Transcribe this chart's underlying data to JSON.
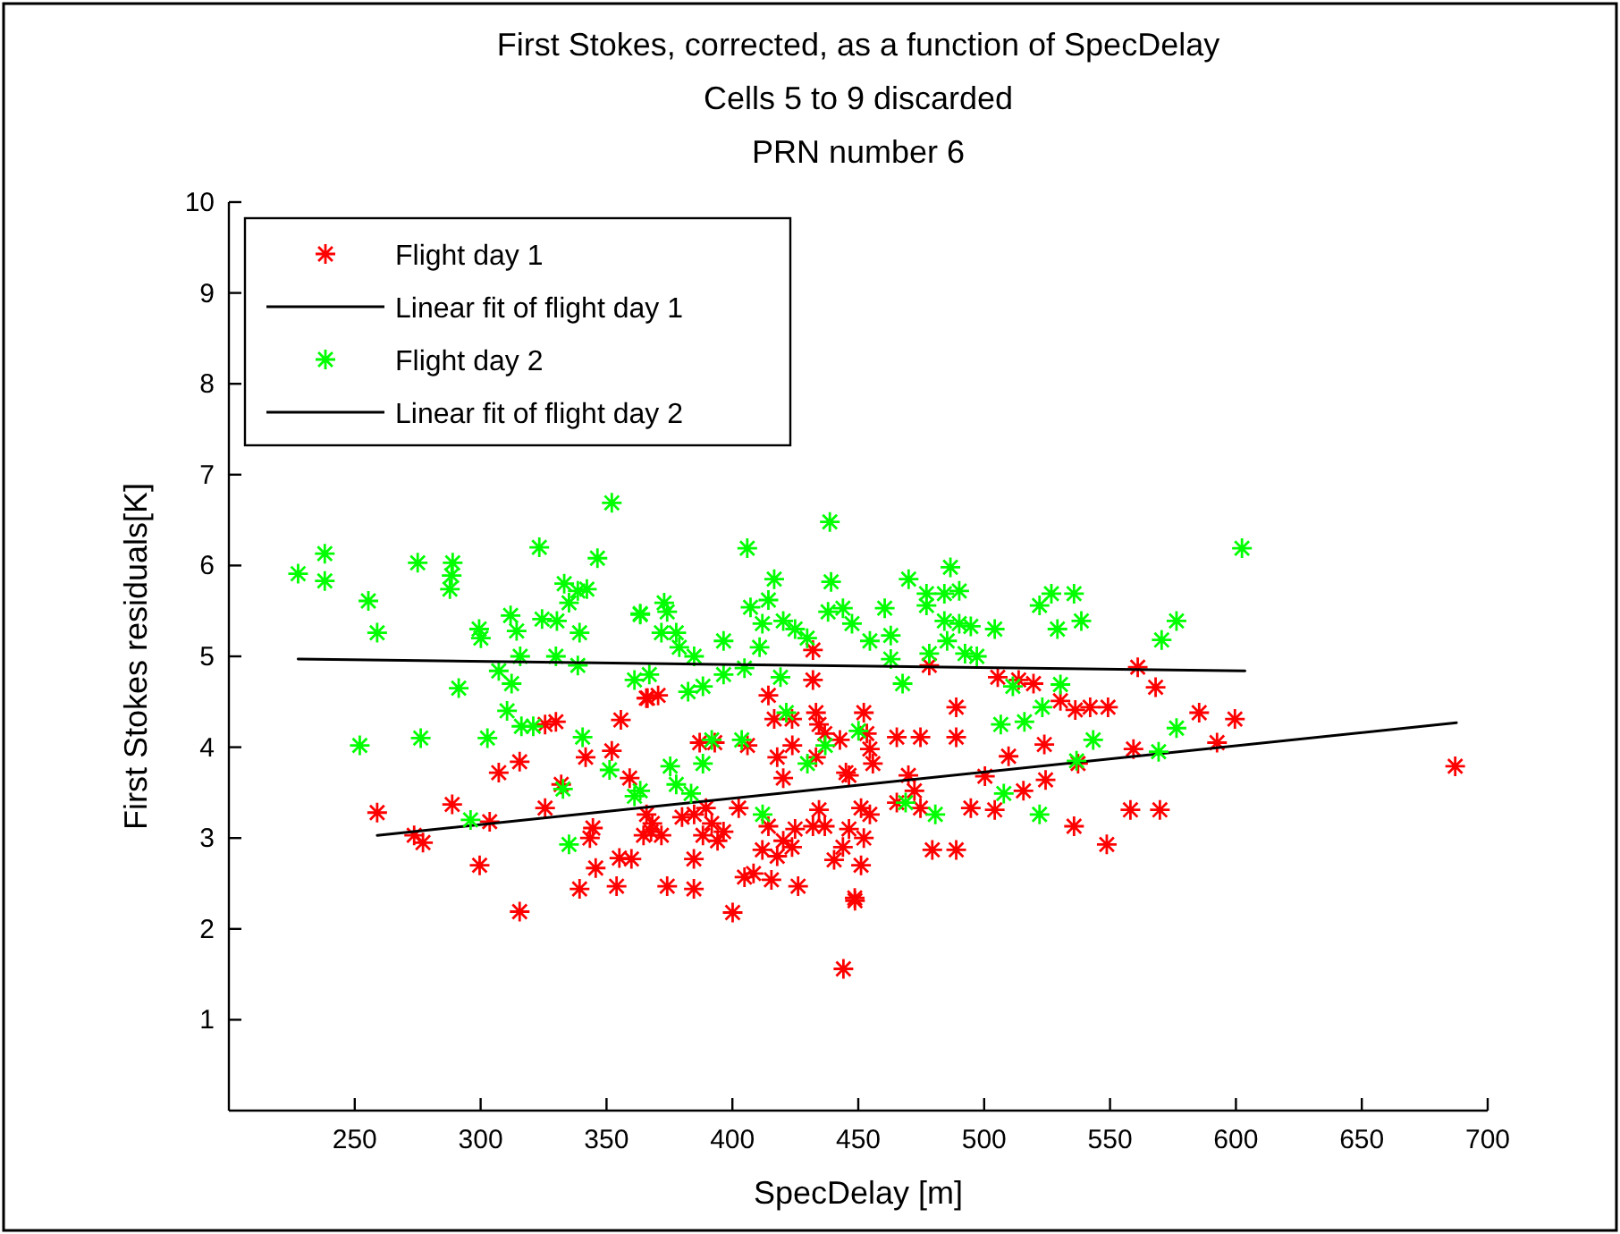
{
  "chart_data": {
    "type": "scatter",
    "title": "First Stokes, corrected, as a function of SpecDelay\nCells 5 to 9 discarded\nPRN number 6",
    "xlabel": "SpecDelay [m]",
    "ylabel": "First Stokes residuals[K]",
    "xlim": [
      200,
      700
    ],
    "ylim": [
      0,
      10
    ],
    "xticks": [
      250,
      300,
      350,
      400,
      450,
      500,
      550,
      600,
      650,
      700
    ],
    "yticks": [
      1,
      2,
      3,
      4,
      5,
      6,
      7,
      8,
      9,
      10
    ],
    "grid": false,
    "legend": "top left",
    "series": [
      {
        "name": "Flight day 1",
        "color": "#ff0000",
        "marker": "cross",
        "x": [
          258.9,
          288.7,
          277.1,
          273.6,
          299.6,
          303.6,
          315.5,
          307.2,
          315.5,
          329.9,
          325.6,
          355.7,
          352.1,
          341.7,
          359.2,
          332,
          325.6,
          344.6,
          343.4,
          345.7,
          339.3,
          354,
          355.1,
          359.9,
          366.3,
          365.9,
          364.7,
          367.7,
          370.5,
          365.8,
          432,
          432,
          414.3,
          416.6,
          423.7,
          433.2,
          434.4,
          452.2,
          453.4,
          454.6,
          455.8,
          465.3,
          474.7,
          488.9,
          488.9,
          478.2,
          505.4,
          513.7,
          519.6,
          523.9,
          509.7,
          500.3,
          515.6,
          504.2,
          494.7,
          469.9,
          472.3,
          474.7,
          465.3,
          446.3,
          451.1,
          454.6,
          446.3,
          452.2,
          443.9,
          451.1,
          440.4,
          434.4,
          432,
          436.7,
          424.9,
          420.2,
          423.7,
          417.8,
          411.9,
          408.4,
          404.8,
          415.5,
          426.1,
          384.7,
          374.1,
          384.7,
          400.1,
          448.6,
          479.4,
          488.9,
          423.8,
          417.8,
          420.2,
          436.7,
          442.7,
          433.2,
          445.1,
          414.3,
          402.5,
          387,
          393,
          406,
          384.8,
          389.5,
          391.8,
          396.5,
          394.1,
          388.3,
          380,
          368.2,
          371.8,
          561,
          568.1,
          530.3,
          536.2,
          542.1,
          549.2,
          585.4,
          599.6,
          592.5,
          559.3,
          524.4,
          537.3,
          558.1,
          569.8,
          535.7,
          548.7,
          687.1,
          444.1,
          448.7
        ],
        "values": [
          3.28,
          3.37,
          2.95,
          3.03,
          2.7,
          3.18,
          2.19,
          3.72,
          3.84,
          4.28,
          4.25,
          4.3,
          3.96,
          3.89,
          3.66,
          3.59,
          3.33,
          3.11,
          3,
          2.67,
          2.44,
          2.47,
          2.78,
          2.77,
          4.54,
          3.26,
          3.03,
          3.07,
          4.57,
          4.54,
          5.07,
          4.74,
          4.57,
          4.31,
          4.31,
          4.38,
          4.25,
          4.38,
          4.15,
          3.98,
          3.82,
          4.11,
          4.11,
          4.44,
          4.11,
          4.9,
          4.77,
          4.74,
          4.7,
          4.03,
          3.9,
          3.68,
          3.52,
          3.31,
          3.33,
          3.69,
          3.52,
          3.33,
          3.39,
          3.69,
          3.33,
          3.26,
          3.1,
          3,
          2.9,
          2.7,
          2.76,
          3.31,
          3.13,
          3.13,
          3.1,
          2.97,
          2.9,
          2.8,
          2.87,
          2.61,
          2.57,
          2.54,
          2.47,
          2.77,
          2.47,
          2.44,
          2.18,
          2.34,
          2.87,
          2.87,
          4.02,
          3.89,
          3.66,
          4.15,
          4.08,
          3.89,
          3.72,
          3.13,
          3.33,
          4.05,
          4.05,
          4.02,
          3.26,
          3.33,
          3.16,
          3.07,
          2.97,
          3.03,
          3.23,
          3.16,
          3.03,
          4.88,
          4.66,
          4.51,
          4.41,
          4.44,
          4.44,
          4.38,
          4.31,
          4.05,
          3.98,
          3.64,
          3.82,
          3.31,
          3.31,
          3.13,
          2.93,
          3.79,
          1.56,
          2.31
        ]
      },
      {
        "name": "Linear fit of flight day 1",
        "type": "line",
        "color": "#000000",
        "marker": "none",
        "x": [
          258.9,
          687.6
        ],
        "values": [
          3.03,
          4.27
        ]
      },
      {
        "name": "Flight day 2",
        "color": "#00ff00",
        "marker": "cross",
        "x": [
          227.5,
          238.1,
          238.1,
          255.4,
          258.9,
          252,
          275,
          288.9,
          288.5,
          287.8,
          276.2,
          291.3,
          299.4,
          300.1,
          302.7,
          311.9,
          314.3,
          315.7,
          307.2,
          312.3,
          310.5,
          316.2,
          320.9,
          323.3,
          324.4,
          330.3,
          333.2,
          335.1,
          338.6,
          342.2,
          329.9,
          338.6,
          339.3,
          346.4,
          352.1,
          340.5,
          351.2,
          332.7,
          296,
          335.1,
          361.1,
          363.4,
          361.1,
          363.4,
          372.9,
          374.1,
          371.8,
          377.7,
          378.9,
          384.8,
          367,
          382.4,
          388.3,
          396.5,
          404.8,
          405.9,
          396.5,
          407.2,
          411.9,
          416.6,
          414.3,
          420.2,
          424.9,
          429.7,
          410.8,
          419.1,
          421.4,
          391.8,
          403.7,
          375.3,
          388.3,
          377.7,
          383.6,
          363.4,
          412,
          429.8,
          436.9,
          439.2,
          438.7,
          438,
          443.9,
          447.5,
          454.6,
          460.5,
          462.9,
          462.9,
          450.1,
          470,
          477.1,
          477.1,
          486.6,
          484.2,
          490.1,
          484.2,
          490.1,
          494.7,
          485.3,
          478.2,
          492.4,
          497.1,
          504.2,
          467.6,
          522,
          526.7,
          529.1,
          506.6,
          516,
          523.1,
          511.4,
          507.8,
          522,
          480.6,
          468.8,
          535.7,
          538.6,
          530.3,
          543.3,
          536.7,
          569.3,
          576.4,
          570.5,
          576.4,
          602.4
        ],
        "values": [
          5.91,
          6.13,
          5.83,
          5.61,
          5.26,
          4.02,
          6.03,
          6.03,
          5.89,
          5.74,
          4.1,
          4.65,
          5.3,
          5.2,
          4.1,
          5.45,
          5.28,
          5,
          4.84,
          4.7,
          4.4,
          4.23,
          4.23,
          6.2,
          5.41,
          5.39,
          5.8,
          5.59,
          5.72,
          5.74,
          5,
          4.9,
          5.26,
          6.08,
          6.69,
          4.11,
          3.75,
          3.54,
          3.2,
          2.93,
          3.46,
          5.46,
          4.74,
          5.47,
          5.59,
          5.49,
          5.26,
          5.26,
          5.1,
          5,
          4.8,
          4.61,
          4.67,
          4.8,
          4.87,
          6.19,
          5.17,
          5.54,
          5.36,
          5.85,
          5.62,
          5.39,
          5.3,
          5.2,
          5.1,
          4.77,
          4.38,
          4.08,
          4.08,
          3.79,
          3.82,
          3.59,
          3.49,
          3.52,
          3.26,
          3.82,
          4.02,
          5.82,
          6.48,
          5.49,
          5.53,
          5.36,
          5.17,
          5.53,
          5.23,
          4.97,
          4.18,
          5.85,
          5.69,
          5.56,
          5.98,
          5.69,
          5.72,
          5.39,
          5.36,
          5.33,
          5.17,
          5.03,
          5.03,
          5,
          5.3,
          4.7,
          5.56,
          5.69,
          5.3,
          4.25,
          4.28,
          4.44,
          4.67,
          3.49,
          3.26,
          3.26,
          3.39,
          5.69,
          5.39,
          4.69,
          4.08,
          3.85,
          3.95,
          4.21,
          5.18,
          5.39,
          6.19
        ]
      },
      {
        "name": "Linear fit of flight day 2",
        "type": "line",
        "color": "#000000",
        "marker": "none",
        "x": [
          227.5,
          603.6
        ],
        "values": [
          4.97,
          4.84
        ]
      }
    ]
  }
}
